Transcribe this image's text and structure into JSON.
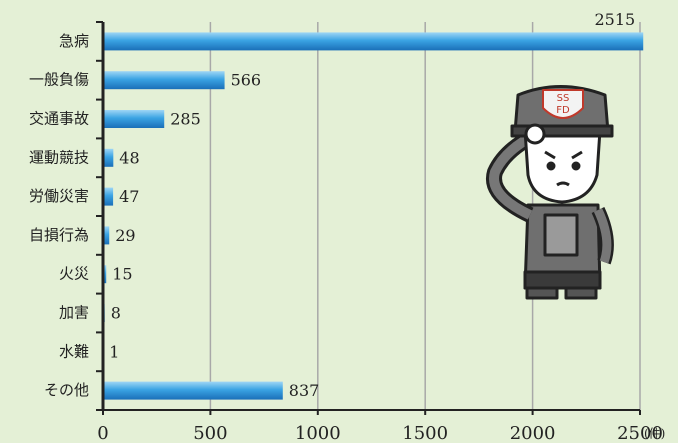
{
  "chart_data": {
    "type": "barh",
    "categories": [
      "急病",
      "一般負傷",
      "交通事故",
      "運動競技",
      "労働災害",
      "自損行為",
      "火災",
      "加害",
      "水難",
      "その他"
    ],
    "values": [
      2515,
      566,
      285,
      48,
      47,
      29,
      15,
      8,
      1,
      837
    ],
    "color": "#2a8fd4",
    "xlim": [
      0,
      2500
    ],
    "xticks": [
      0,
      500,
      1000,
      1500,
      2000,
      2500
    ],
    "x_unit": "(件)",
    "grid": true
  },
  "illustration": {
    "badge": [
      "SS",
      "FD"
    ]
  }
}
